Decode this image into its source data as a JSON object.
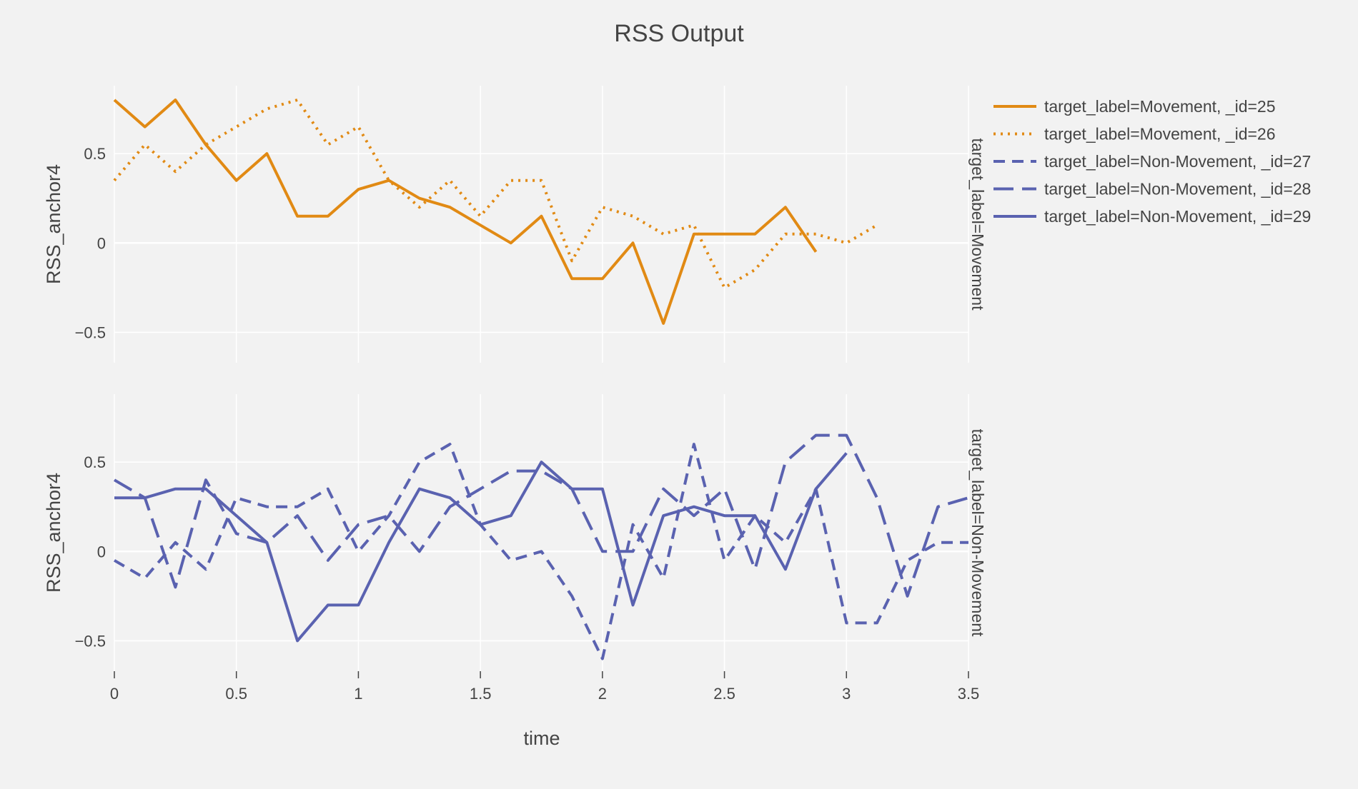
{
  "chart_data": {
    "type": "line",
    "title": "RSS Output",
    "xlabel": "time",
    "ylabel": "RSS_anchor4",
    "xlim": [
      0,
      3.5
    ],
    "ylim": [
      -0.67,
      0.88
    ],
    "x_ticks": [
      0,
      0.5,
      1,
      1.5,
      2,
      2.5,
      3,
      3.5
    ],
    "x_tick_labels": [
      "0",
      "0.5",
      "1",
      "1.5",
      "2",
      "2.5",
      "3",
      "3.5"
    ],
    "y_ticks": [
      -0.5,
      0,
      0.5
    ],
    "y_tick_labels": [
      "−0.5",
      "0",
      "0.5"
    ],
    "grid": true,
    "legend_position": "top-right",
    "colors": {
      "Movement": "#e18a14",
      "Non-Movement": "#5a62b0",
      "background": "#f2f2f2",
      "grid": "#ffffff"
    },
    "facets": [
      {
        "label": "target_label=Movement",
        "series_indices": [
          0,
          1
        ]
      },
      {
        "label": "target_label=Non-Movement",
        "series_indices": [
          2,
          3,
          4
        ]
      }
    ],
    "series": [
      {
        "name": "target_label=Movement, _id=25",
        "facet": 0,
        "color": "#e18a14",
        "dash": "solid",
        "x": [
          0,
          0.125,
          0.25,
          0.375,
          0.5,
          0.625,
          0.75,
          0.875,
          1,
          1.125,
          1.25,
          1.375,
          1.5,
          1.625,
          1.75,
          1.875,
          2,
          2.125,
          2.25,
          2.375,
          2.5,
          2.625,
          2.75,
          2.875
        ],
        "y": [
          0.8,
          0.65,
          0.8,
          0.55,
          0.35,
          0.5,
          0.15,
          0.15,
          0.3,
          0.35,
          0.25,
          0.2,
          0.1,
          0.0,
          0.15,
          -0.2,
          -0.2,
          0.0,
          -0.45,
          0.05,
          0.05,
          0.05,
          0.2,
          -0.05
        ]
      },
      {
        "name": "target_label=Movement, _id=26",
        "facet": 0,
        "color": "#e18a14",
        "dash": "dot",
        "x": [
          0,
          0.125,
          0.25,
          0.375,
          0.5,
          0.625,
          0.75,
          0.875,
          1,
          1.125,
          1.25,
          1.375,
          1.5,
          1.625,
          1.75,
          1.875,
          2,
          2.125,
          2.25,
          2.375,
          2.5,
          2.625,
          2.75,
          2.875,
          3,
          3.125
        ],
        "y": [
          0.35,
          0.55,
          0.4,
          0.55,
          0.65,
          0.75,
          0.8,
          0.55,
          0.65,
          0.35,
          0.2,
          0.35,
          0.15,
          0.35,
          0.35,
          -0.1,
          0.2,
          0.15,
          0.05,
          0.1,
          -0.25,
          -0.15,
          0.05,
          0.05,
          0.0,
          0.1
        ]
      },
      {
        "name": "target_label=Non-Movement, _id=27",
        "facet": 1,
        "color": "#5a62b0",
        "dash": "dash",
        "x": [
          0,
          0.125,
          0.25,
          0.375,
          0.5,
          0.625,
          0.75,
          0.875,
          1,
          1.125,
          1.25,
          1.375,
          1.5,
          1.625,
          1.75,
          1.875,
          2,
          2.125,
          2.25,
          2.375,
          2.5,
          2.625,
          2.75,
          2.875,
          3,
          3.125,
          3.25,
          3.375,
          3.5
        ],
        "y": [
          -0.05,
          -0.15,
          0.05,
          -0.1,
          0.3,
          0.25,
          0.25,
          0.35,
          0.0,
          0.2,
          0.5,
          0.6,
          0.15,
          -0.05,
          0.0,
          -0.25,
          -0.6,
          0.15,
          -0.15,
          0.6,
          -0.05,
          0.2,
          0.05,
          0.35,
          -0.4,
          -0.4,
          -0.05,
          0.05,
          0.05
        ]
      },
      {
        "name": "target_label=Non-Movement, _id=28",
        "facet": 1,
        "color": "#5a62b0",
        "dash": "longdash",
        "x": [
          0,
          0.125,
          0.25,
          0.375,
          0.5,
          0.625,
          0.75,
          0.875,
          1,
          1.125,
          1.25,
          1.375,
          1.5,
          1.625,
          1.75,
          1.875,
          2,
          2.125,
          2.25,
          2.375,
          2.5,
          2.625,
          2.75,
          2.875,
          3,
          3.125,
          3.25,
          3.375,
          3.5
        ],
        "y": [
          0.4,
          0.3,
          -0.2,
          0.4,
          0.1,
          0.05,
          0.2,
          -0.05,
          0.15,
          0.2,
          0.0,
          0.25,
          0.35,
          0.45,
          0.45,
          0.35,
          0.0,
          0.0,
          0.35,
          0.2,
          0.35,
          -0.1,
          0.5,
          0.65,
          0.65,
          0.3,
          -0.25,
          0.25,
          0.3
        ]
      },
      {
        "name": "target_label=Non-Movement, _id=29",
        "facet": 1,
        "color": "#5a62b0",
        "dash": "solid",
        "x": [
          0,
          0.125,
          0.25,
          0.375,
          0.5,
          0.625,
          0.75,
          0.875,
          1,
          1.125,
          1.25,
          1.375,
          1.5,
          1.625,
          1.75,
          1.875,
          2,
          2.125,
          2.25,
          2.375,
          2.5,
          2.625,
          2.75,
          2.875,
          3
        ],
        "y": [
          0.3,
          0.3,
          0.35,
          0.35,
          0.2,
          0.05,
          -0.5,
          -0.3,
          -0.3,
          0.05,
          0.35,
          0.3,
          0.15,
          0.2,
          0.5,
          0.35,
          0.35,
          -0.3,
          0.2,
          0.25,
          0.2,
          0.2,
          -0.1,
          0.35,
          0.55
        ]
      }
    ]
  }
}
